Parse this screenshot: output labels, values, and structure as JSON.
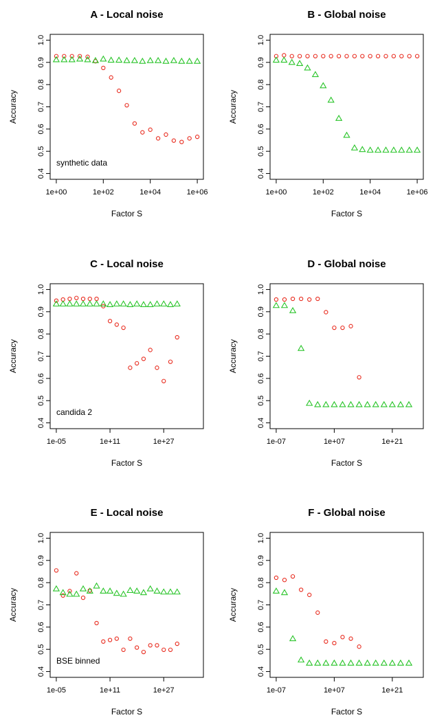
{
  "colors": {
    "series_a": "#e8291c",
    "series_b": "#28c428",
    "axis": "#000000"
  },
  "chart_data": [
    {
      "type": "scatter",
      "title": "A - Local noise",
      "xlabel": "Factor S",
      "ylabel": "Accuracy",
      "annotation": "synthetic data",
      "xscale": "log10",
      "xlim": [
        1,
        1000000
      ],
      "ylim": [
        0.4,
        1.0
      ],
      "xticks": [
        "1e+00",
        "1e+02",
        "1e+04",
        "1e+06"
      ],
      "yticks": [
        "0.4",
        "0.5",
        "0.6",
        "0.7",
        "0.8",
        "0.9",
        "1.0"
      ],
      "series": [
        {
          "marker": "circle",
          "color": "#e8291c",
          "x": [
            1,
            2.15,
            4.64,
            10,
            21.5,
            46.4,
            100,
            215,
            464,
            1000,
            2154,
            4642,
            10000,
            21544,
            46416,
            100000,
            215443,
            464159,
            1000000
          ],
          "y": [
            0.928,
            0.928,
            0.928,
            0.928,
            0.925,
            0.905,
            0.875,
            0.832,
            0.772,
            0.707,
            0.625,
            0.585,
            0.597,
            0.558,
            0.575,
            0.548,
            0.542,
            0.558,
            0.565
          ]
        },
        {
          "marker": "triangle",
          "color": "#28c428",
          "x": [
            1,
            2.15,
            4.64,
            10,
            21.5,
            46.4,
            100,
            215,
            464,
            1000,
            2154,
            4642,
            10000,
            21544,
            46416,
            100000,
            215443,
            464159,
            1000000
          ],
          "y": [
            0.912,
            0.912,
            0.912,
            0.915,
            0.912,
            0.908,
            0.915,
            0.91,
            0.91,
            0.908,
            0.908,
            0.905,
            0.908,
            0.908,
            0.905,
            0.908,
            0.905,
            0.905,
            0.905
          ]
        }
      ]
    },
    {
      "type": "scatter",
      "title": "B - Global noise",
      "xlabel": "Factor S",
      "ylabel": "Accuracy",
      "annotation": "",
      "xscale": "log10",
      "xlim": [
        1,
        1000000
      ],
      "ylim": [
        0.4,
        1.0
      ],
      "xticks": [
        "1e+00",
        "1e+02",
        "1e+04",
        "1e+06"
      ],
      "yticks": [
        "0.4",
        "0.5",
        "0.6",
        "0.7",
        "0.8",
        "0.9",
        "1.0"
      ],
      "series": [
        {
          "marker": "circle",
          "color": "#e8291c",
          "x": [
            1,
            2.15,
            4.64,
            10,
            21.5,
            46.4,
            100,
            215,
            464,
            1000,
            2154,
            4642,
            10000,
            21544,
            46416,
            100000,
            215443,
            464159,
            1000000
          ],
          "y": [
            0.928,
            0.932,
            0.928,
            0.928,
            0.928,
            0.928,
            0.928,
            0.928,
            0.928,
            0.928,
            0.928,
            0.928,
            0.928,
            0.928,
            0.928,
            0.928,
            0.928,
            0.928,
            0.928
          ]
        },
        {
          "marker": "triangle",
          "color": "#28c428",
          "x": [
            1,
            2.15,
            4.64,
            10,
            21.5,
            46.4,
            100,
            215,
            464,
            1000,
            2154,
            4642,
            10000,
            21544,
            46416,
            100000,
            215443,
            464159,
            1000000
          ],
          "y": [
            0.91,
            0.91,
            0.9,
            0.895,
            0.875,
            0.845,
            0.795,
            0.73,
            0.648,
            0.572,
            0.515,
            0.508,
            0.505,
            0.505,
            0.505,
            0.505,
            0.505,
            0.505,
            0.505
          ]
        }
      ]
    },
    {
      "type": "scatter",
      "title": "C - Local noise",
      "xlabel": "Factor S",
      "ylabel": "Accuracy",
      "annotation": "candida 2",
      "xscale": "log10",
      "xlim": [
        1e-05,
        1e+37
      ],
      "ylim": [
        0.4,
        1.0
      ],
      "xticks": [
        "1e-05",
        "1e+11",
        "1e+27"
      ],
      "yticks": [
        "0.4",
        "0.5",
        "0.6",
        "0.7",
        "0.8",
        "0.9",
        "1.0"
      ],
      "series": [
        {
          "marker": "circle",
          "color": "#e8291c",
          "x": [
            1e-05,
            0.001,
            0.1,
            10.0,
            1000.0,
            100000.0,
            10000000.0,
            1000000000.0,
            100000000000.0,
            10000000000000.0,
            1000000000000000.0,
            1e+17,
            1e+19,
            1e+21,
            1e+23,
            1e+25,
            1e+27,
            1e+29,
            1e+31,
            1e+33,
            1e+35
          ],
          "y": [
            0.95,
            0.955,
            0.958,
            0.962,
            0.958,
            0.958,
            0.958,
            0.925,
            0.858,
            0.842,
            0.828,
            0.648,
            0.668,
            0.688,
            0.728,
            0.648,
            0.588,
            0.675,
            0.785,
            null,
            null
          ]
        },
        {
          "marker": "triangle",
          "color": "#28c428",
          "x": [
            1e-05,
            0.001,
            0.1,
            10.0,
            1000.0,
            100000.0,
            10000000.0,
            1000000000.0,
            100000000000.0,
            10000000000000.0,
            1000000000000000.0,
            1e+17,
            1e+19,
            1e+21,
            1e+23,
            1e+25,
            1e+27,
            1e+29,
            1e+31,
            1e+33,
            1e+35
          ],
          "y": [
            0.935,
            0.935,
            0.935,
            0.935,
            0.935,
            0.935,
            0.935,
            0.935,
            0.932,
            0.935,
            0.935,
            0.932,
            0.935,
            0.932,
            0.932,
            0.935,
            0.935,
            0.932,
            0.935,
            null,
            null
          ]
        }
      ]
    },
    {
      "type": "scatter",
      "title": "D - Global noise",
      "xlabel": "Factor S",
      "ylabel": "Accuracy",
      "annotation": "",
      "xscale": "log10",
      "xlim": [
        1e-07,
        1e+27
      ],
      "ylim": [
        0.4,
        1.0
      ],
      "xticks": [
        "1e-07",
        "1e+07",
        "1e+21"
      ],
      "yticks": [
        "0.4",
        "0.5",
        "0.6",
        "0.7",
        "0.8",
        "0.9",
        "1.0"
      ],
      "series": [
        {
          "marker": "circle",
          "color": "#e8291c",
          "x": [
            1e-07,
            1e-05,
            0.001,
            0.1,
            10.0,
            1000.0,
            100000.0,
            10000000.0,
            1000000000.0,
            100000000000.0,
            10000000000000.0
          ],
          "y": [
            0.955,
            0.955,
            0.958,
            0.958,
            0.955,
            0.958,
            0.898,
            0.828,
            0.828,
            0.835,
            0.605
          ]
        },
        {
          "marker": "triangle",
          "color": "#28c428",
          "x": [
            1e-07,
            1e-05,
            0.001,
            0.1,
            10.0,
            1000.0,
            100000.0,
            10000000.0,
            1000000000.0,
            100000000000.0,
            10000000000000.0,
            1000000000000000.0,
            1e+17,
            1e+19,
            1e+21,
            1e+23,
            1e+25
          ],
          "y": [
            0.928,
            0.928,
            0.905,
            0.735,
            0.488,
            0.482,
            0.482,
            0.482,
            0.482,
            0.482,
            0.482,
            0.482,
            0.482,
            0.482,
            0.482,
            0.482,
            0.482
          ]
        }
      ]
    },
    {
      "type": "scatter",
      "title": "E - Local noise",
      "xlabel": "Factor S",
      "ylabel": "Accuracy",
      "annotation": "BSE binned",
      "xscale": "log10",
      "xlim": [
        1e-05,
        1e+37
      ],
      "ylim": [
        0.4,
        1.0
      ],
      "xticks": [
        "1e-05",
        "1e+11",
        "1e+27"
      ],
      "yticks": [
        "0.4",
        "0.5",
        "0.6",
        "0.7",
        "0.8",
        "0.9",
        "1.0"
      ],
      "series": [
        {
          "marker": "circle",
          "color": "#e8291c",
          "x": [
            1e-05,
            0.001,
            0.1,
            10.0,
            1000.0,
            100000.0,
            10000000.0,
            1000000000.0,
            100000000000.0,
            10000000000000.0,
            1000000000000000.0,
            1e+17,
            1e+19,
            1e+21,
            1e+23,
            1e+25,
            1e+27,
            1e+29,
            1e+31,
            1e+33,
            1e+35
          ],
          "y": [
            0.855,
            0.742,
            0.762,
            0.842,
            0.732,
            0.765,
            0.618,
            0.535,
            0.542,
            0.548,
            0.498,
            0.548,
            0.508,
            0.488,
            0.518,
            0.518,
            0.498,
            0.498,
            0.525,
            null,
            null
          ]
        },
        {
          "marker": "triangle",
          "color": "#28c428",
          "x": [
            1e-05,
            0.001,
            0.1,
            10.0,
            1000.0,
            100000.0,
            10000000.0,
            1000000000.0,
            100000000000.0,
            10000000000000.0,
            1000000000000000.0,
            1e+17,
            1e+19,
            1e+21,
            1e+23,
            1e+25,
            1e+27,
            1e+29,
            1e+31,
            1e+33,
            1e+35
          ],
          "y": [
            0.772,
            0.755,
            0.748,
            0.748,
            0.772,
            0.762,
            0.785,
            0.762,
            0.762,
            0.752,
            0.748,
            0.765,
            0.762,
            0.755,
            0.772,
            0.762,
            0.758,
            0.758,
            0.758,
            null,
            null
          ]
        }
      ]
    },
    {
      "type": "scatter",
      "title": "F - Global noise",
      "xlabel": "Factor S",
      "ylabel": "Accuracy",
      "annotation": "",
      "xscale": "log10",
      "xlim": [
        1e-07,
        1e+27
      ],
      "ylim": [
        0.4,
        1.0
      ],
      "xticks": [
        "1e-07",
        "1e+07",
        "1e+21"
      ],
      "yticks": [
        "0.4",
        "0.5",
        "0.6",
        "0.7",
        "0.8",
        "0.9",
        "1.0"
      ],
      "series": [
        {
          "marker": "circle",
          "color": "#e8291c",
          "x": [
            1e-07,
            1e-05,
            0.001,
            0.1,
            10.0,
            1000.0,
            100000.0,
            10000000.0,
            1000000000.0,
            100000000000.0,
            10000000000000.0
          ],
          "y": [
            0.822,
            0.812,
            0.828,
            0.768,
            0.745,
            0.665,
            0.535,
            0.528,
            0.555,
            0.548,
            0.512
          ]
        },
        {
          "marker": "triangle",
          "color": "#28c428",
          "x": [
            1e-07,
            1e-05,
            0.001,
            0.1,
            10.0,
            1000.0,
            100000.0,
            10000000.0,
            1000000000.0,
            100000000000.0,
            10000000000000.0,
            1000000000000000.0,
            1e+17,
            1e+19,
            1e+21,
            1e+23,
            1e+25
          ],
          "y": [
            0.762,
            0.755,
            0.548,
            0.452,
            0.438,
            0.438,
            0.438,
            0.438,
            0.438,
            0.438,
            0.438,
            0.438,
            0.438,
            0.438,
            0.438,
            0.438,
            0.438
          ]
        }
      ]
    }
  ]
}
